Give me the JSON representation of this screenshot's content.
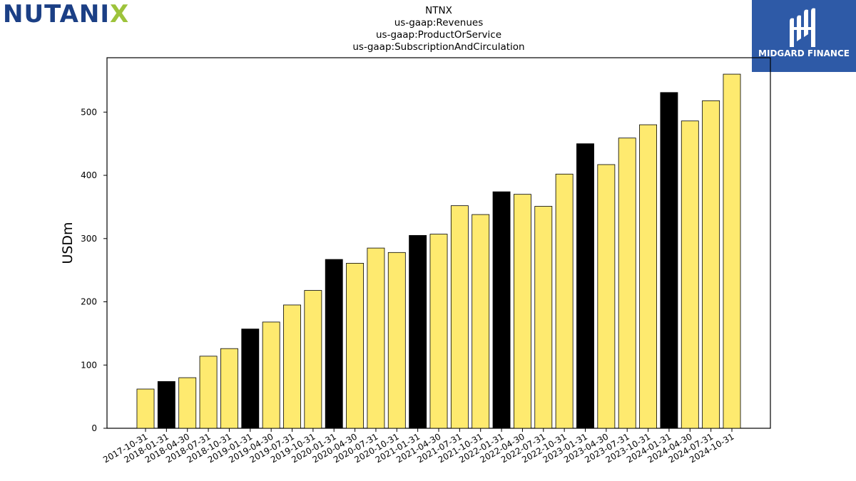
{
  "logos": {
    "left": {
      "prefix": "NUTANI",
      "accent": "X",
      "primary_color": "#1b3f85",
      "accent_color": "#9dc33b"
    },
    "right": {
      "text": "MIDGARD FINANCE",
      "background": "#2e5aa7",
      "icon": "midgard-monogram-icon"
    }
  },
  "chart_data": {
    "type": "bar",
    "title": "NTNX",
    "subtitle_lines": [
      "us-gaap:Revenues",
      "us-gaap:ProductOrService",
      "us-gaap:SubscriptionAndCirculation"
    ],
    "xlabel": "",
    "ylabel": "USDm",
    "ylim": [
      0,
      586
    ],
    "yticks": [
      0,
      100,
      200,
      300,
      400,
      500
    ],
    "grid": false,
    "categories": [
      "2017-10-31",
      "2018-01-31",
      "2018-04-30",
      "2018-07-31",
      "2018-10-31",
      "2019-01-31",
      "2019-04-30",
      "2019-07-31",
      "2019-10-31",
      "2020-01-31",
      "2020-04-30",
      "2020-07-31",
      "2020-10-31",
      "2021-01-31",
      "2021-04-30",
      "2021-07-31",
      "2021-10-31",
      "2022-01-31",
      "2022-04-30",
      "2022-07-31",
      "2022-10-31",
      "2023-01-31",
      "2023-04-30",
      "2023-07-31",
      "2023-10-31",
      "2024-01-31",
      "2024-04-30",
      "2024-07-31",
      "2024-10-31"
    ],
    "values": [
      62,
      74,
      80,
      114,
      126,
      157,
      168,
      195,
      218,
      267,
      261,
      285,
      278,
      305,
      307,
      352,
      338,
      374,
      370,
      351,
      402,
      450,
      417,
      459,
      480,
      531,
      486,
      518,
      560
    ],
    "highlight_categories": [
      "2018-01-31",
      "2019-01-31",
      "2020-01-31",
      "2021-01-31",
      "2022-01-31",
      "2023-01-31",
      "2024-01-31"
    ],
    "colors": {
      "bar": "#feea6f",
      "highlight": "#000000",
      "edge": "#000000"
    }
  }
}
